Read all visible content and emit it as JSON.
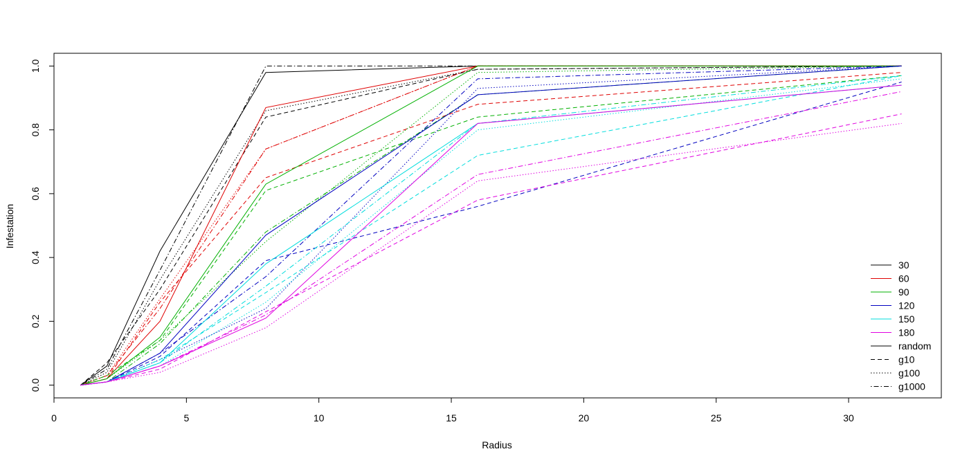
{
  "chart_data": {
    "type": "line",
    "title": "",
    "xlabel": "Radius",
    "ylabel": "Infestation",
    "xlim": [
      0,
      33.5
    ],
    "ylim": [
      -0.04,
      1.04
    ],
    "x_ticks": [
      0,
      5,
      10,
      15,
      20,
      25,
      30
    ],
    "y_ticks": [
      0.0,
      0.2,
      0.4,
      0.6,
      0.8,
      1.0
    ],
    "y_tick_labels": [
      "0.0",
      "0.2",
      "0.4",
      "0.6",
      "0.8",
      "1.0"
    ],
    "grid": false,
    "legend_position": "bottom-right",
    "x": [
      1,
      2,
      4,
      8,
      16,
      32
    ],
    "colors": {
      "30": "#000000",
      "60": "#DF0000",
      "90": "#00B000",
      "120": "#0000C0",
      "150": "#00DDDD",
      "180": "#E000E0"
    },
    "linestyles": {
      "random": "solid",
      "g10": "dashed",
      "g100": "dotted",
      "g1000": "dotdash"
    },
    "legend": [
      {
        "label": "30",
        "color": "#000000",
        "style": "solid"
      },
      {
        "label": "60",
        "color": "#DF0000",
        "style": "solid"
      },
      {
        "label": "90",
        "color": "#00B000",
        "style": "solid"
      },
      {
        "label": "120",
        "color": "#0000C0",
        "style": "solid"
      },
      {
        "label": "150",
        "color": "#00DDDD",
        "style": "solid"
      },
      {
        "label": "180",
        "color": "#E000E0",
        "style": "solid"
      },
      {
        "label": "random",
        "color": "#000000",
        "style": "solid"
      },
      {
        "label": "g10",
        "color": "#000000",
        "style": "dashed"
      },
      {
        "label": "g100",
        "color": "#000000",
        "style": "dotted"
      },
      {
        "label": "g1000",
        "color": "#000000",
        "style": "dotdash"
      }
    ],
    "series": [
      {
        "group": "30",
        "type": "random",
        "values": [
          0.0,
          0.06,
          0.42,
          0.98,
          1.0,
          1.0
        ]
      },
      {
        "group": "30",
        "type": "g10",
        "values": [
          0.0,
          0.07,
          0.3,
          0.84,
          0.99,
          1.0
        ]
      },
      {
        "group": "30",
        "type": "g100",
        "values": [
          0.0,
          0.04,
          0.33,
          0.86,
          0.99,
          1.0
        ]
      },
      {
        "group": "30",
        "type": "g1000",
        "values": [
          0.0,
          0.05,
          0.36,
          1.0,
          1.0,
          1.0
        ]
      },
      {
        "group": "60",
        "type": "random",
        "values": [
          0.0,
          0.02,
          0.2,
          0.87,
          1.0,
          1.0
        ]
      },
      {
        "group": "60",
        "type": "g10",
        "values": [
          0.0,
          0.02,
          0.26,
          0.65,
          0.88,
          0.98
        ]
      },
      {
        "group": "60",
        "type": "g100",
        "values": [
          0.0,
          0.03,
          0.27,
          0.74,
          1.0,
          1.0
        ]
      },
      {
        "group": "60",
        "type": "g1000",
        "values": [
          0.0,
          0.03,
          0.24,
          0.74,
          1.0,
          1.0
        ]
      },
      {
        "group": "90",
        "type": "random",
        "values": [
          0.0,
          0.02,
          0.15,
          0.63,
          1.0,
          1.0
        ]
      },
      {
        "group": "90",
        "type": "g10",
        "values": [
          0.0,
          0.03,
          0.14,
          0.61,
          0.84,
          0.97
        ]
      },
      {
        "group": "90",
        "type": "g100",
        "values": [
          0.0,
          0.02,
          0.14,
          0.45,
          0.98,
          1.0
        ]
      },
      {
        "group": "90",
        "type": "g1000",
        "values": [
          0.0,
          0.01,
          0.13,
          0.48,
          0.91,
          1.0
        ]
      },
      {
        "group": "120",
        "type": "random",
        "values": [
          0.0,
          0.01,
          0.1,
          0.47,
          0.91,
          1.0
        ]
      },
      {
        "group": "120",
        "type": "g10",
        "values": [
          0.0,
          0.01,
          0.09,
          0.39,
          0.56,
          0.95
        ]
      },
      {
        "group": "120",
        "type": "g100",
        "values": [
          0.0,
          0.01,
          0.08,
          0.24,
          0.93,
          1.0
        ]
      },
      {
        "group": "120",
        "type": "g1000",
        "values": [
          0.0,
          0.01,
          0.1,
          0.34,
          0.96,
          1.0
        ]
      },
      {
        "group": "150",
        "type": "random",
        "values": [
          0.0,
          0.01,
          0.07,
          0.38,
          0.82,
          0.94
        ]
      },
      {
        "group": "150",
        "type": "g10",
        "values": [
          0.0,
          0.01,
          0.08,
          0.29,
          0.72,
          0.97
        ]
      },
      {
        "group": "150",
        "type": "g100",
        "values": [
          0.0,
          0.01,
          0.06,
          0.26,
          0.8,
          0.96
        ]
      },
      {
        "group": "150",
        "type": "g1000",
        "values": [
          0.0,
          0.01,
          0.07,
          0.31,
          0.82,
          0.97
        ]
      },
      {
        "group": "180",
        "type": "random",
        "values": [
          0.0,
          0.01,
          0.06,
          0.21,
          0.82,
          0.94
        ]
      },
      {
        "group": "180",
        "type": "g10",
        "values": [
          0.0,
          0.01,
          0.05,
          0.23,
          0.58,
          0.85
        ]
      },
      {
        "group": "180",
        "type": "g100",
        "values": [
          0.0,
          0.01,
          0.04,
          0.18,
          0.64,
          0.82
        ]
      },
      {
        "group": "180",
        "type": "g1000",
        "values": [
          0.0,
          0.01,
          0.06,
          0.22,
          0.66,
          0.92
        ]
      }
    ]
  }
}
